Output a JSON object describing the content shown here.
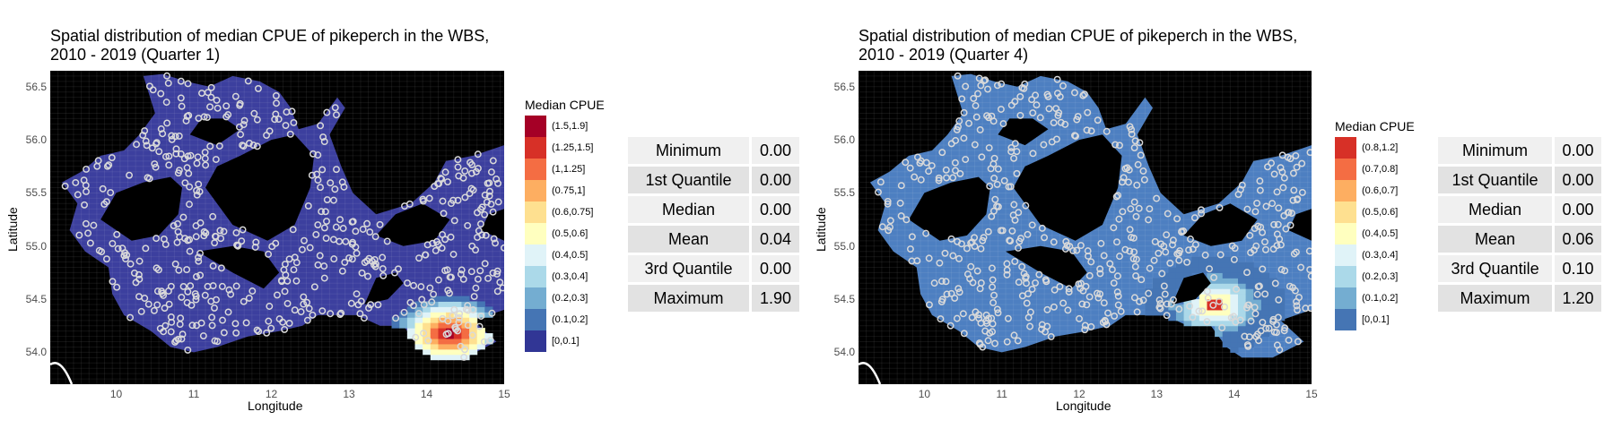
{
  "chart_data": [
    {
      "type": "heatmap",
      "title_line1": "Spatial distribution of median CPUE of pikeperch in the WBS,",
      "title_line2": "2010 - 2019 (Quarter 1)",
      "xlabel": "Longitude",
      "ylabel": "Latitude",
      "xlim": [
        9.15,
        15.0
      ],
      "ylim": [
        53.7,
        56.65
      ],
      "x_ticks": [
        "10",
        "11",
        "12",
        "13",
        "14",
        "15"
      ],
      "y_ticks": [
        "54.0",
        "54.5",
        "55.0",
        "55.5",
        "56.0",
        "56.5"
      ],
      "legend_title": "Median CPUE",
      "legend": [
        {
          "label": "(1.5,1.9]",
          "color": "#a50026"
        },
        {
          "label": "(1.25,1.5]",
          "color": "#d73027"
        },
        {
          "label": "(1,1.25]",
          "color": "#f46d43"
        },
        {
          "label": "(0.75,1]",
          "color": "#fdae61"
        },
        {
          "label": "(0.6,0.75]",
          "color": "#fee090"
        },
        {
          "label": "(0.5,0.6]",
          "color": "#ffffbf"
        },
        {
          "label": "(0.4,0.5]",
          "color": "#e0f3f8"
        },
        {
          "label": "(0.3,0.4]",
          "color": "#abd9e9"
        },
        {
          "label": "(0.2,0.3]",
          "color": "#74add1"
        },
        {
          "label": "(0.1,0.2]",
          "color": "#4575b4"
        },
        {
          "label": "[0,0.1]",
          "color": "#313695"
        }
      ],
      "base_color": "#3c3f9e",
      "hotspot": {
        "lon": 14.3,
        "lat": 54.18,
        "peak_class": "(1.5,1.9]"
      },
      "stats": [
        {
          "name": "Minimum",
          "value": "0.00"
        },
        {
          "name": "1st Quantile",
          "value": "0.00"
        },
        {
          "name": "Median",
          "value": "0.00"
        },
        {
          "name": "Mean",
          "value": "0.04"
        },
        {
          "name": "3rd Quantile",
          "value": "0.00"
        },
        {
          "name": "Maximum",
          "value": "1.90"
        }
      ]
    },
    {
      "type": "heatmap",
      "title_line1": "Spatial distribution of median CPUE of pikeperch in the WBS,",
      "title_line2": "2010 - 2019 (Quarter 4)",
      "xlabel": "Longitude",
      "ylabel": "Latitude",
      "xlim": [
        9.15,
        15.0
      ],
      "ylim": [
        53.7,
        56.65
      ],
      "x_ticks": [
        "10",
        "11",
        "12",
        "13",
        "14",
        "15"
      ],
      "y_ticks": [
        "54.0",
        "54.5",
        "55.0",
        "55.5",
        "56.0",
        "56.5"
      ],
      "legend_title": "Median CPUE",
      "legend": [
        {
          "label": "(0.8,1.2]",
          "color": "#d73027"
        },
        {
          "label": "(0.7,0.8]",
          "color": "#f46d43"
        },
        {
          "label": "(0.6,0.7]",
          "color": "#fdae61"
        },
        {
          "label": "(0.5,0.6]",
          "color": "#fee090"
        },
        {
          "label": "(0.4,0.5]",
          "color": "#ffffbf"
        },
        {
          "label": "(0.3,0.4]",
          "color": "#e0f3f8"
        },
        {
          "label": "(0.2,0.3]",
          "color": "#abd9e9"
        },
        {
          "label": "(0.1,0.2]",
          "color": "#74add1"
        },
        {
          "label": "[0,0.1]",
          "color": "#4575b4"
        }
      ],
      "base_color": "#4d7fc1",
      "hotspot": {
        "lon": 13.75,
        "lat": 54.45,
        "peak_class": "(0.8,1.2]"
      },
      "stats": [
        {
          "name": "Minimum",
          "value": "0.00"
        },
        {
          "name": "1st Quantile",
          "value": "0.00"
        },
        {
          "name": "Median",
          "value": "0.00"
        },
        {
          "name": "Mean",
          "value": "0.06"
        },
        {
          "name": "3rd Quantile",
          "value": "0.10"
        },
        {
          "name": "Maximum",
          "value": "1.20"
        }
      ]
    }
  ]
}
